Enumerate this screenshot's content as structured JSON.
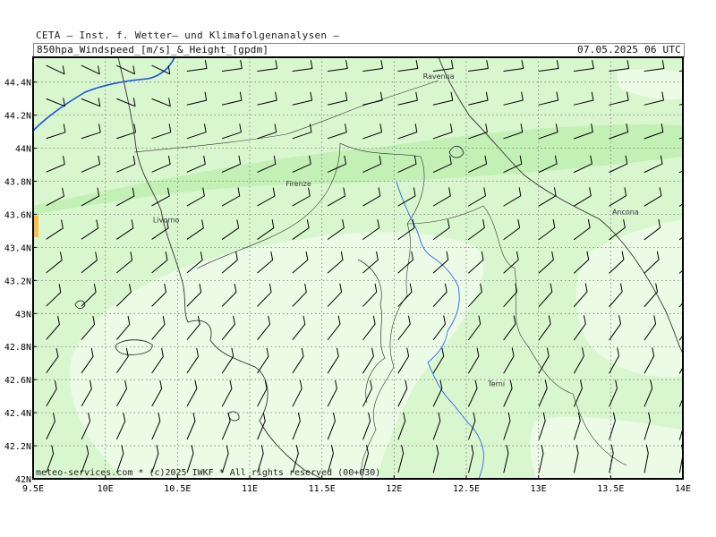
{
  "header": {
    "title": "CETA – Inst. f. Wetter– und Klimafolgenanalysen –",
    "product": "850hpa_Windspeed_[m/s]_&_Height_[gpdm]",
    "valid_time": "07.05.2025 06 UTC"
  },
  "footer": "meteo-services.com * (c)2025 IWKF * All rights reserved (00+030)",
  "axes": {
    "lon_labels": [
      "9.5E",
      "10E",
      "10.5E",
      "11E",
      "11.5E",
      "12E",
      "12.5E",
      "13E",
      "13.5E",
      "14E"
    ],
    "lon_values": [
      9.5,
      10,
      10.5,
      11,
      11.5,
      12,
      12.5,
      13,
      13.5,
      14
    ],
    "lat_labels": [
      "44.4N",
      "44.2N",
      "44N",
      "43.8N",
      "43.6N",
      "43.4N",
      "43.2N",
      "43N",
      "42.8N",
      "42.6N",
      "42.4N",
      "42.2N",
      "42N"
    ],
    "lat_values": [
      44.4,
      44.2,
      44.0,
      43.8,
      43.6,
      43.4,
      43.2,
      43.0,
      42.8,
      42.6,
      42.4,
      42.2,
      42.0
    ]
  },
  "extent": {
    "lon_min": 9.5,
    "lon_max": 14.0,
    "lat_min": 42.0,
    "lat_max": 44.55
  },
  "cities": [
    {
      "name": "Ravenna",
      "lon": 12.2,
      "lat": 44.42
    },
    {
      "name": "Firenze",
      "lon": 11.25,
      "lat": 43.77
    },
    {
      "name": "Livorno",
      "lon": 10.33,
      "lat": 43.55
    },
    {
      "name": "Ancona",
      "lon": 13.51,
      "lat": 43.6
    },
    {
      "name": "Terni",
      "lon": 12.65,
      "lat": 42.56
    }
  ],
  "colors": {
    "shade_light": "#ebfbe6",
    "shade_mid": "#d9f7cf",
    "shade_strong": "#c3f0b4",
    "land_fill": "#f4fdf0",
    "coast": "#333333",
    "river": "#2a66ee",
    "contour": "#1a4fe0",
    "barb": "#000000",
    "orange_patch": "#f4c050"
  }
}
